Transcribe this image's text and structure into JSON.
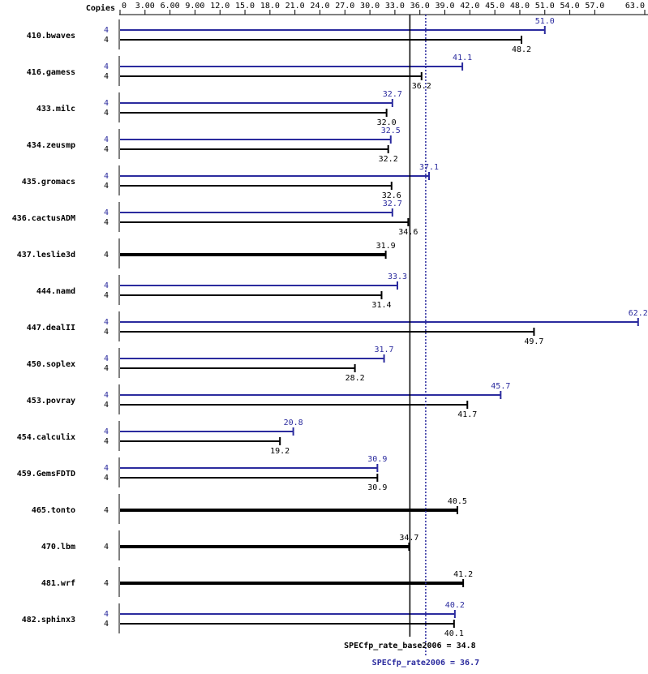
{
  "chart_data": {
    "type": "spec-bar",
    "copies_label": "Copies",
    "xlim": [
      0,
      63
    ],
    "xticks": [
      0,
      {
        "value": 3,
        "label": "3.00"
      },
      {
        "value": 6,
        "label": "6.00"
      },
      {
        "value": 9,
        "label": "9.00"
      },
      {
        "value": 12,
        "label": "12.0"
      },
      {
        "value": 15,
        "label": "15.0"
      },
      {
        "value": 18,
        "label": "18.0"
      },
      {
        "value": 21,
        "label": "21.0"
      },
      {
        "value": 24,
        "label": "24.0"
      },
      {
        "value": 27,
        "label": "27.0"
      },
      {
        "value": 30,
        "label": "30.0"
      },
      {
        "value": 33,
        "label": "33.0"
      },
      {
        "value": 36,
        "label": "36.0"
      },
      {
        "value": 39,
        "label": "39.0"
      },
      {
        "value": 42,
        "label": "42.0"
      },
      {
        "value": 45,
        "label": "45.0"
      },
      {
        "value": 48,
        "label": "48.0"
      },
      {
        "value": 51,
        "label": "51.0"
      },
      {
        "value": 54,
        "label": "54.0"
      },
      {
        "value": 57,
        "label": "57.0"
      },
      {
        "value": 63,
        "label": "63.0"
      }
    ],
    "colors": [
      "#2b2b9e",
      "#000000"
    ],
    "rows": [
      {
        "name": "410.bwaves",
        "copies": [
          4,
          4
        ],
        "values": [
          51.0,
          48.2
        ],
        "value_labels": [
          "51.0",
          "48.2"
        ]
      },
      {
        "name": "416.gamess",
        "copies": [
          4,
          4
        ],
        "values": [
          41.1,
          36.2
        ]
      },
      {
        "name": "433.milc",
        "copies": [
          4,
          4
        ],
        "values": [
          32.7,
          32.0
        ],
        "value_labels": [
          "32.7",
          "32.0"
        ]
      },
      {
        "name": "434.zeusmp",
        "copies": [
          4,
          4
        ],
        "values": [
          32.5,
          32.2
        ]
      },
      {
        "name": "435.gromacs",
        "copies": [
          4,
          4
        ],
        "values": [
          37.1,
          32.6
        ]
      },
      {
        "name": "436.cactusADM",
        "copies": [
          4,
          4
        ],
        "values": [
          32.7,
          34.6
        ]
      },
      {
        "name": "437.leslie3d",
        "copies": [
          4
        ],
        "values": [
          31.9
        ]
      },
      {
        "name": "444.namd",
        "copies": [
          4,
          4
        ],
        "values": [
          33.3,
          31.4
        ]
      },
      {
        "name": "447.dealII",
        "copies": [
          4,
          4
        ],
        "values": [
          62.2,
          49.7
        ]
      },
      {
        "name": "450.soplex",
        "copies": [
          4,
          4
        ],
        "values": [
          31.7,
          28.2
        ]
      },
      {
        "name": "453.povray",
        "copies": [
          4,
          4
        ],
        "values": [
          45.7,
          41.7
        ]
      },
      {
        "name": "454.calculix",
        "copies": [
          4,
          4
        ],
        "values": [
          20.8,
          19.2
        ]
      },
      {
        "name": "459.GemsFDTD",
        "copies": [
          4,
          4
        ],
        "values": [
          30.9,
          30.9
        ]
      },
      {
        "name": "465.tonto",
        "copies": [
          4
        ],
        "values": [
          40.5
        ]
      },
      {
        "name": "470.lbm",
        "copies": [
          4
        ],
        "values": [
          34.7
        ]
      },
      {
        "name": "481.wrf",
        "copies": [
          4
        ],
        "values": [
          41.2
        ]
      },
      {
        "name": "482.sphinx3",
        "copies": [
          4,
          4
        ],
        "values": [
          40.2,
          40.1
        ]
      }
    ],
    "base_summary": {
      "label": "SPECfp_rate_base2006 = 34.8",
      "value": 34.8
    },
    "peak_summary": {
      "label": "SPECfp_rate2006 = 36.7",
      "value": 36.7
    }
  }
}
